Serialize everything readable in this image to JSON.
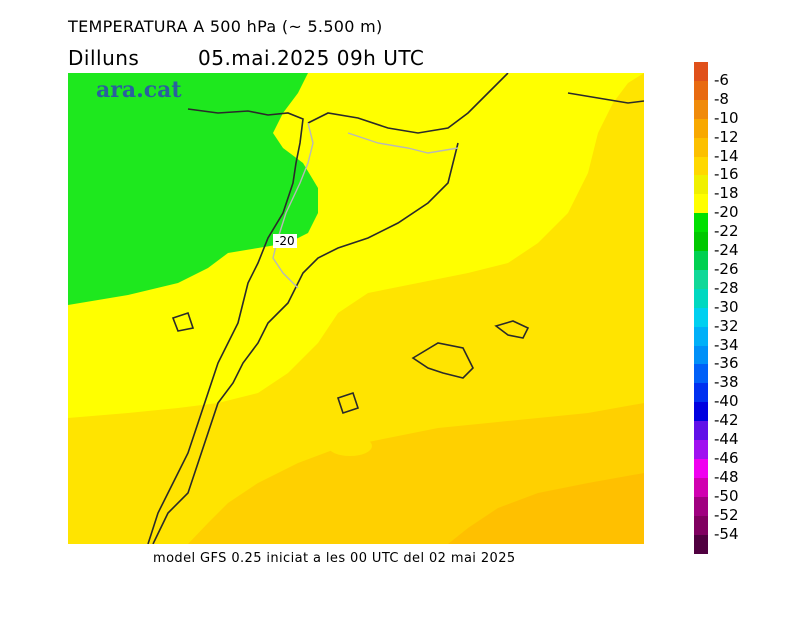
{
  "title": "TEMPERATURA A 500 hPa (~ 5.500 m)",
  "day": "Dilluns",
  "datetime": "05.mai.2025 09h UTC",
  "footer": "model GFS 0.25 iniciat a les 00 UTC del 02 mai 2025",
  "logo": "ara.cat",
  "contour_label": "-20",
  "legend": {
    "labels": [
      "-6",
      "-8",
      "-10",
      "-12",
      "-14",
      "-16",
      "-18",
      "-20",
      "-22",
      "-24",
      "-26",
      "-28",
      "-30",
      "-32",
      "-34",
      "-36",
      "-38",
      "-40",
      "-42",
      "-44",
      "-46",
      "-48",
      "-50",
      "-52",
      "-54"
    ],
    "colors": [
      "#e0501a",
      "#e86a10",
      "#f08a0a",
      "#f8a800",
      "#fcc000",
      "#ffd800",
      "#f0f000",
      "#ffff00",
      "#00e000",
      "#00c800",
      "#00d050",
      "#10d898",
      "#00d8c0",
      "#00d0f0",
      "#00b0f8",
      "#0090f8",
      "#0060f8",
      "#0030f0",
      "#0000e0",
      "#6010e8",
      "#a010f0",
      "#f000f0",
      "#d000b0",
      "#a00080",
      "#800060",
      "#500040"
    ]
  },
  "map_colors": {
    "green": "#1ee81e",
    "yellow": "#ffff00",
    "light_orange": "#ffe400",
    "orange": "#ffd000",
    "dark_orange": "#ffc000",
    "coast": "#2a2a2a",
    "border": "#b8b8b8"
  }
}
